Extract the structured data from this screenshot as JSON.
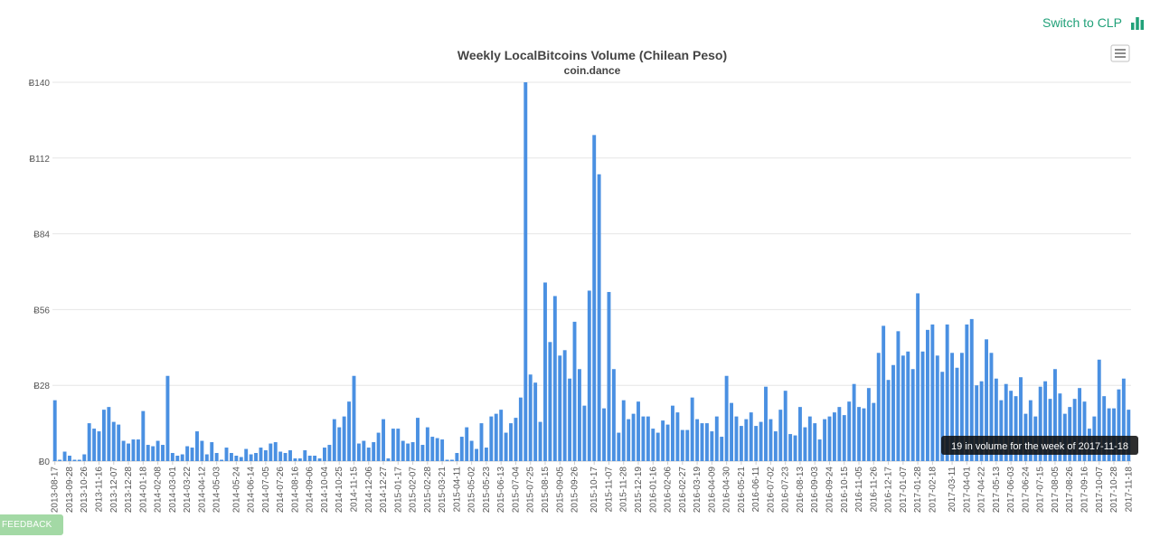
{
  "switch_link": {
    "label": "Switch to CLP",
    "icon": "bar-chart-icon",
    "color": "#21a179"
  },
  "feedback_label": "FEEDBACK",
  "tooltip_text": "19 in volume for the week of 2017-11-18",
  "chart_data": {
    "type": "bar",
    "title": "Weekly LocalBitcoins Volume (Chilean Peso)",
    "subtitle": "coin.dance",
    "ylabel": "",
    "xlabel": "",
    "ylim": [
      0,
      140
    ],
    "y_ticks": [
      "Ƀ0",
      "Ƀ28",
      "Ƀ56",
      "Ƀ84",
      "Ƀ112",
      "Ƀ140"
    ],
    "y_tick_values": [
      0,
      28,
      56,
      84,
      112,
      140
    ],
    "bar_color": "#4a90e2",
    "grid": true,
    "x_tick_labels": [
      "2013-08-17",
      "2013-09-28",
      "2013-10-26",
      "2013-11-16",
      "2013-12-07",
      "2013-12-28",
      "2014-01-18",
      "2014-02-08",
      "2014-03-01",
      "2014-03-22",
      "2014-04-12",
      "2014-05-03",
      "2014-05-24",
      "2014-06-14",
      "2014-07-05",
      "2014-07-26",
      "2014-08-16",
      "2014-09-06",
      "2014-10-04",
      "2014-10-25",
      "2014-11-15",
      "2014-12-06",
      "2014-12-27",
      "2015-01-17",
      "2015-02-07",
      "2015-02-28",
      "2015-03-21",
      "2015-04-11",
      "2015-05-02",
      "2015-05-23",
      "2015-06-13",
      "2015-07-04",
      "2015-07-25",
      "2015-08-15",
      "2015-09-05",
      "2015-09-26",
      "2015-10-17",
      "2015-11-07",
      "2015-11-28",
      "2015-12-19",
      "2016-01-16",
      "2016-02-06",
      "2016-02-27",
      "2016-03-19",
      "2016-04-09",
      "2016-04-30",
      "2016-05-21",
      "2016-06-11",
      "2016-07-02",
      "2016-07-23",
      "2016-08-13",
      "2016-09-03",
      "2016-09-24",
      "2016-10-15",
      "2016-11-05",
      "2016-11-26",
      "2016-12-17",
      "2017-01-07",
      "2017-01-28",
      "2017-02-18",
      "2017-03-11",
      "2017-04-01",
      "2017-04-22",
      "2017-05-13",
      "2017-06-03",
      "2017-06-24",
      "2017-07-15",
      "2017-08-05",
      "2017-08-26",
      "2017-09-16",
      "2017-10-07",
      "2017-10-28",
      "2017-11-18"
    ],
    "values": [
      22.5,
      0.5,
      3.5,
      2,
      0.5,
      0.5,
      2.5,
      14,
      12,
      11,
      19,
      20,
      14.5,
      13.5,
      7.5,
      6.5,
      8,
      8,
      18.5,
      6,
      5.5,
      7.5,
      6,
      31.5,
      3,
      2,
      2.5,
      5.5,
      5,
      11,
      7.5,
      2.5,
      7,
      3,
      0.5,
      5,
      3,
      2,
      1.5,
      4.5,
      2.5,
      3,
      5,
      4,
      6.5,
      7,
      3.5,
      3,
      4,
      1,
      1,
      4,
      2,
      2,
      1,
      5,
      6,
      15.5,
      12.5,
      16.5,
      22,
      31.5,
      6.5,
      7.5,
      5,
      7,
      10.5,
      15.5,
      1,
      12,
      12,
      7.5,
      6.5,
      7,
      16,
      6,
      12.5,
      9,
      8.5,
      8,
      0.5,
      0.5,
      3,
      9,
      12.5,
      7.5,
      4.5,
      14,
      5,
      16.5,
      17.5,
      19,
      10.5,
      14,
      16,
      23.5,
      140,
      32,
      29,
      14.5,
      66,
      44,
      61,
      39,
      41,
      30.5,
      51.5,
      34,
      20.5,
      63,
      120.5,
      106,
      19.5,
      62.5,
      34,
      10.5,
      22.5,
      15.5,
      17.5,
      22,
      16.5,
      16.5,
      12,
      10.5,
      15,
      13.5,
      20.5,
      18,
      11.5,
      11.5,
      23.5,
      15.5,
      14,
      14,
      11,
      16.5,
      9,
      31.5,
      21.5,
      16.5,
      13,
      15.5,
      18,
      13,
      14.5,
      27.5,
      15.5,
      11,
      19,
      26,
      10,
      9.5,
      20,
      12.5,
      16.5,
      14,
      8,
      15.5,
      16.5,
      18,
      20,
      17,
      22,
      28.5,
      20,
      19.5,
      27,
      21.5,
      40,
      50,
      30,
      35.5,
      48,
      39,
      40.5,
      34,
      62,
      40.5,
      48.5,
      50.5,
      39,
      33,
      50.5,
      40,
      34.5,
      40,
      50.5,
      52.5,
      28,
      29.5,
      45,
      40,
      30.5,
      22.5,
      28.5,
      26,
      24,
      31,
      17.5,
      22.5,
      16.5,
      27.5,
      29.5,
      23,
      34,
      25,
      17.5,
      20,
      23,
      27,
      22,
      12,
      16.5,
      37.5,
      24,
      19.5,
      19.5,
      26.5,
      30.5,
      19
    ]
  }
}
